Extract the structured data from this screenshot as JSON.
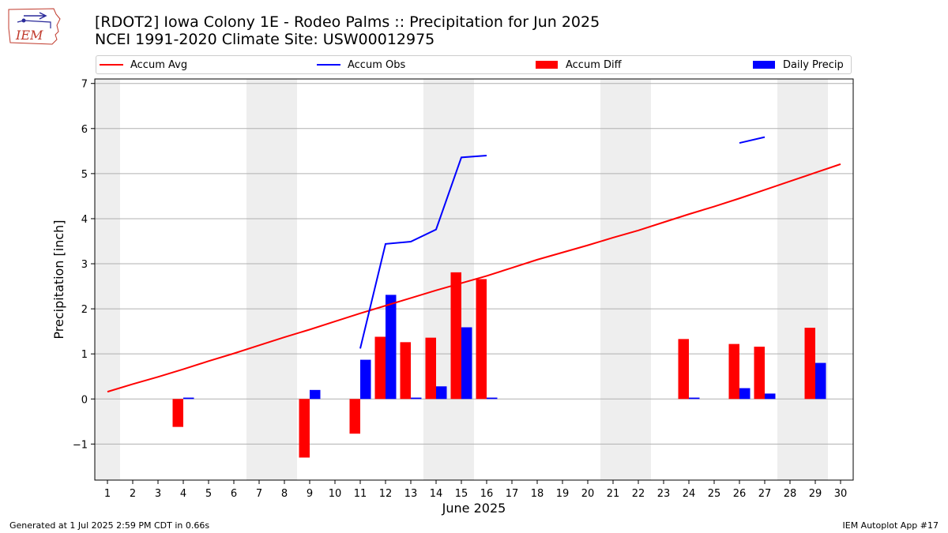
{
  "title": "[RDOT2] Iowa Colony 1E - Rodeo Palms :: Precipitation for Jun 2025",
  "subtitle": "NCEI 1991-2020 Climate Site: USW00012975",
  "logo_text": "IEM",
  "footer_left": "Generated at 1 Jul 2025 2:59 PM CDT in 0.66s",
  "footer_right": "IEM Autoplot App #17",
  "colors": {
    "avg": "#ff0000",
    "obs": "#0000ff",
    "diff": "#ff0000",
    "daily": "#0000ff",
    "weekend": "#eeeeee",
    "grid": "#b0b0b0"
  },
  "legend": {
    "avg": "Accum Avg",
    "obs": "Accum Obs",
    "diff": "Accum Diff",
    "daily": "Daily Precip"
  },
  "chart_data": {
    "type": "bar",
    "title": "[RDOT2] Iowa Colony 1E - Rodeo Palms :: Precipitation for Jun 2025",
    "subtitle": "NCEI 1991-2020 Climate Site: USW00012975",
    "xlabel": "June 2025",
    "ylabel": "Precipitation [inch]",
    "ylim": [
      -1.8,
      7.1
    ],
    "yticks": [
      -1,
      0,
      1,
      2,
      3,
      4,
      5,
      6,
      7
    ],
    "grid": true,
    "legend_position": "top",
    "x": [
      1,
      2,
      3,
      4,
      5,
      6,
      7,
      8,
      9,
      10,
      11,
      12,
      13,
      14,
      15,
      16,
      17,
      18,
      19,
      20,
      21,
      22,
      23,
      24,
      25,
      26,
      27,
      28,
      29,
      30
    ],
    "shaded_days": [
      1,
      7,
      8,
      14,
      15,
      21,
      22,
      28,
      29
    ],
    "series": [
      {
        "name": "Accum Avg",
        "kind": "line",
        "values": [
          0.16,
          0.33,
          0.49,
          0.66,
          0.84,
          1.01,
          1.19,
          1.37,
          1.54,
          1.72,
          1.9,
          2.07,
          2.24,
          2.41,
          2.57,
          2.73,
          2.91,
          3.09,
          3.25,
          3.41,
          3.58,
          3.74,
          3.92,
          4.1,
          4.27,
          4.45,
          4.64,
          4.83,
          5.02,
          5.21
        ]
      },
      {
        "name": "Accum Obs",
        "kind": "line",
        "values": [
          null,
          null,
          null,
          null,
          null,
          null,
          null,
          null,
          null,
          null,
          1.12,
          3.44,
          3.49,
          3.76,
          5.36,
          5.4,
          null,
          null,
          null,
          null,
          null,
          null,
          null,
          null,
          null,
          5.68,
          5.81,
          null,
          null,
          null
        ]
      },
      {
        "name": "Accum Diff",
        "kind": "bar",
        "values": [
          0,
          0,
          0,
          -0.62,
          0,
          0,
          0,
          0,
          -1.3,
          0,
          -0.77,
          1.38,
          1.26,
          1.36,
          2.81,
          2.66,
          0,
          0,
          0,
          0,
          0,
          0,
          0,
          1.33,
          0,
          1.22,
          1.16,
          0,
          1.58,
          0
        ]
      },
      {
        "name": "Daily Precip",
        "kind": "bar",
        "values": [
          0,
          0,
          0,
          0.03,
          0,
          0,
          0,
          0,
          0.2,
          0,
          0.87,
          2.31,
          0.03,
          0.28,
          1.59,
          0.03,
          0,
          0,
          0,
          0,
          0,
          0,
          0,
          0.03,
          0,
          0.24,
          0.12,
          0,
          0.8,
          0
        ]
      }
    ]
  }
}
